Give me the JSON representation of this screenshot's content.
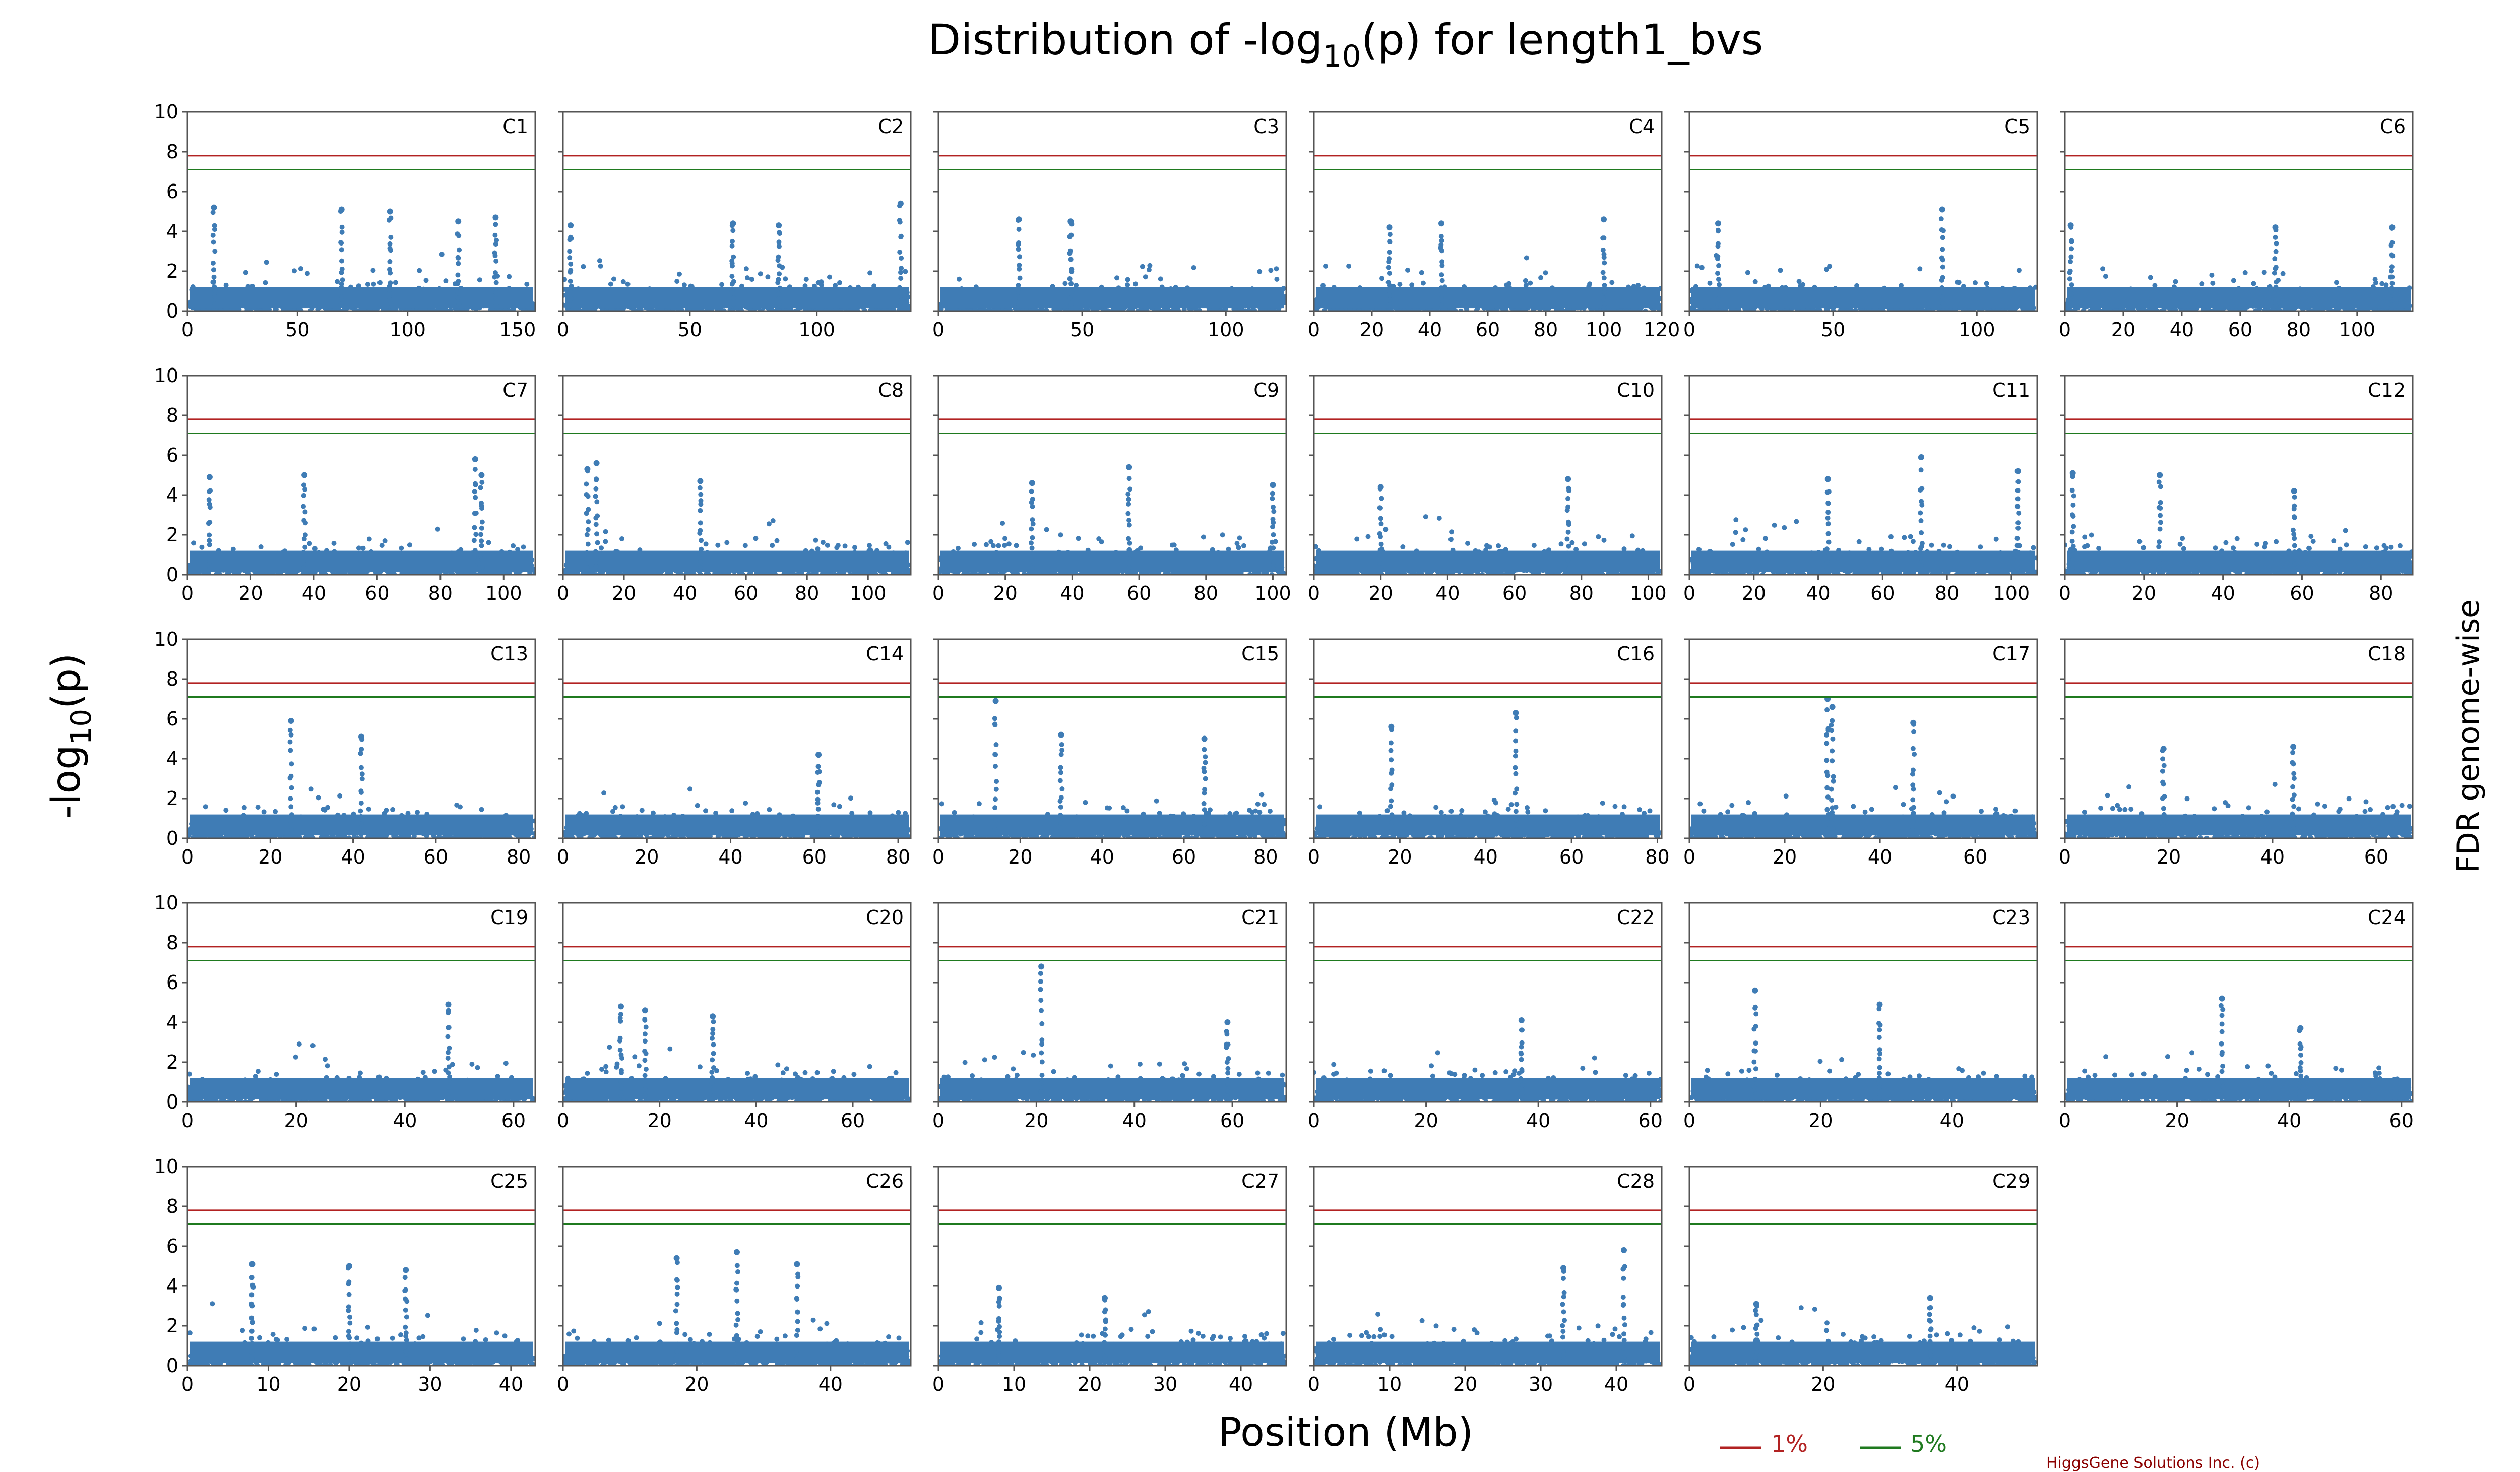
{
  "title": {
    "main": "Distribution of -log",
    "sub": "10",
    "rest": "(p) for length1_bvs"
  },
  "xlabel": "Position (Mb)",
  "ylabel": {
    "main": "-log",
    "sub": "10",
    "rest": "(p)"
  },
  "right_label": "FDR genome-wise",
  "legend": [
    {
      "label": "1%",
      "color": "#b22222"
    },
    {
      "label": "5%",
      "color": "#1f7a1f"
    }
  ],
  "credit": "HiggsGene Solutions Inc. (c)",
  "chart_data": {
    "type": "scatter",
    "point_color": "#3f7cb5",
    "ylim": [
      0,
      10
    ],
    "yticks": [
      0,
      2,
      4,
      6,
      8,
      10
    ],
    "thresholds": [
      {
        "name": "1%",
        "y": 7.8,
        "color": "#b22222"
      },
      {
        "name": "5%",
        "y": 7.1,
        "color": "#1f7a1f"
      }
    ],
    "panels": [
      {
        "name": "C1",
        "xmax": 158,
        "xticks": [
          0,
          50,
          100,
          150
        ],
        "peaks": [
          [
            12,
            5.2
          ],
          [
            70,
            5.1
          ],
          [
            92,
            5.0
          ],
          [
            123,
            4.5
          ],
          [
            140,
            4.7
          ]
        ]
      },
      {
        "name": "C2",
        "xmax": 137,
        "xticks": [
          0,
          50,
          100
        ],
        "peaks": [
          [
            3,
            4.3
          ],
          [
            67,
            4.4
          ],
          [
            85,
            4.3
          ],
          [
            133,
            5.4
          ]
        ]
      },
      {
        "name": "C3",
        "xmax": 121,
        "xticks": [
          0,
          50,
          100
        ],
        "peaks": [
          [
            28,
            4.6
          ],
          [
            46,
            4.5
          ]
        ]
      },
      {
        "name": "C4",
        "xmax": 120,
        "xticks": [
          0,
          20,
          40,
          60,
          80,
          100,
          120
        ],
        "peaks": [
          [
            26,
            4.2
          ],
          [
            44,
            4.4
          ],
          [
            100,
            4.6
          ]
        ]
      },
      {
        "name": "C5",
        "xmax": 121,
        "xticks": [
          0,
          50,
          100
        ],
        "peaks": [
          [
            10,
            4.4
          ],
          [
            88,
            5.1
          ]
        ]
      },
      {
        "name": "C6",
        "xmax": 119,
        "xticks": [
          0,
          20,
          40,
          60,
          80,
          100
        ],
        "peaks": [
          [
            2,
            4.3
          ],
          [
            72,
            4.2
          ],
          [
            112,
            4.2
          ]
        ]
      },
      {
        "name": "C7",
        "xmax": 110,
        "xticks": [
          0,
          20,
          40,
          60,
          80,
          100
        ],
        "peaks": [
          [
            7,
            4.9
          ],
          [
            37,
            5.0
          ],
          [
            91,
            5.8
          ],
          [
            93,
            5.0
          ]
        ]
      },
      {
        "name": "C8",
        "xmax": 114,
        "xticks": [
          0,
          20,
          40,
          60,
          80,
          100
        ],
        "peaks": [
          [
            8,
            5.3
          ],
          [
            11,
            5.6
          ],
          [
            45,
            4.7
          ]
        ]
      },
      {
        "name": "C9",
        "xmax": 104,
        "xticks": [
          0,
          20,
          40,
          60,
          80,
          100
        ],
        "peaks": [
          [
            28,
            4.6
          ],
          [
            57,
            5.4
          ],
          [
            100,
            4.5
          ]
        ]
      },
      {
        "name": "C10",
        "xmax": 104,
        "xticks": [
          0,
          20,
          40,
          60,
          80,
          100
        ],
        "peaks": [
          [
            20,
            4.4
          ],
          [
            76,
            4.8
          ]
        ]
      },
      {
        "name": "C11",
        "xmax": 108,
        "xticks": [
          0,
          20,
          40,
          60,
          80,
          100
        ],
        "peaks": [
          [
            43,
            4.8
          ],
          [
            72,
            5.9
          ],
          [
            102,
            5.2
          ]
        ]
      },
      {
        "name": "C12",
        "xmax": 88,
        "xticks": [
          0,
          20,
          40,
          60,
          80
        ],
        "peaks": [
          [
            2,
            5.1
          ],
          [
            24,
            5.0
          ],
          [
            58,
            4.2
          ]
        ]
      },
      {
        "name": "C13",
        "xmax": 84,
        "xticks": [
          0,
          20,
          40,
          60,
          80
        ],
        "peaks": [
          [
            25,
            5.9
          ],
          [
            42,
            5.1
          ]
        ]
      },
      {
        "name": "C14",
        "xmax": 83,
        "xticks": [
          0,
          20,
          40,
          60,
          80
        ],
        "peaks": [
          [
            61,
            4.2
          ]
        ]
      },
      {
        "name": "C15",
        "xmax": 85,
        "xticks": [
          0,
          20,
          40,
          60,
          80
        ],
        "peaks": [
          [
            14,
            6.9
          ],
          [
            30,
            5.2
          ],
          [
            65,
            5.0
          ]
        ]
      },
      {
        "name": "C16",
        "xmax": 81,
        "xticks": [
          0,
          20,
          40,
          60,
          80
        ],
        "peaks": [
          [
            18,
            5.6
          ],
          [
            47,
            6.3
          ]
        ]
      },
      {
        "name": "C17",
        "xmax": 73,
        "xticks": [
          0,
          20,
          40,
          60
        ],
        "peaks": [
          [
            29,
            7.0
          ],
          [
            30,
            6.6
          ],
          [
            47,
            5.8
          ]
        ]
      },
      {
        "name": "C18",
        "xmax": 67,
        "xticks": [
          0,
          20,
          40,
          60
        ],
        "peaks": [
          [
            19,
            4.5
          ],
          [
            44,
            4.6
          ]
        ]
      },
      {
        "name": "C19",
        "xmax": 64,
        "xticks": [
          0,
          20,
          40,
          60
        ],
        "peaks": [
          [
            48,
            4.9
          ]
        ]
      },
      {
        "name": "C20",
        "xmax": 72,
        "xticks": [
          0,
          20,
          40,
          60
        ],
        "peaks": [
          [
            12,
            4.8
          ],
          [
            17,
            4.6
          ],
          [
            31,
            4.3
          ]
        ]
      },
      {
        "name": "C21",
        "xmax": 71,
        "xticks": [
          0,
          20,
          40,
          60
        ],
        "peaks": [
          [
            21,
            6.8
          ],
          [
            59,
            4.0
          ]
        ]
      },
      {
        "name": "C22",
        "xmax": 62,
        "xticks": [
          0,
          20,
          40,
          60
        ],
        "peaks": [
          [
            37,
            4.1
          ]
        ]
      },
      {
        "name": "C23",
        "xmax": 53,
        "xticks": [
          0,
          20,
          40
        ],
        "peaks": [
          [
            10,
            5.6
          ],
          [
            29,
            4.9
          ]
        ]
      },
      {
        "name": "C24",
        "xmax": 62,
        "xticks": [
          0,
          20,
          40,
          60
        ],
        "peaks": [
          [
            28,
            5.2
          ],
          [
            42,
            3.7
          ]
        ]
      },
      {
        "name": "C25",
        "xmax": 43,
        "xticks": [
          0,
          10,
          20,
          30,
          40
        ],
        "peaks": [
          [
            8,
            5.1
          ],
          [
            20,
            5.0
          ],
          [
            27,
            4.8
          ]
        ]
      },
      {
        "name": "C26",
        "xmax": 52,
        "xticks": [
          0,
          20,
          40
        ],
        "peaks": [
          [
            17,
            5.4
          ],
          [
            26,
            5.7
          ],
          [
            35,
            5.1
          ]
        ]
      },
      {
        "name": "C27",
        "xmax": 46,
        "xticks": [
          0,
          10,
          20,
          30,
          40
        ],
        "peaks": [
          [
            8,
            3.9
          ],
          [
            22,
            3.4
          ]
        ]
      },
      {
        "name": "C28",
        "xmax": 46,
        "xticks": [
          0,
          10,
          20,
          30,
          40
        ],
        "peaks": [
          [
            33,
            4.9
          ],
          [
            41,
            5.8
          ]
        ]
      },
      {
        "name": "C29",
        "xmax": 52,
        "xticks": [
          0,
          20,
          40
        ],
        "peaks": [
          [
            10,
            3.1
          ],
          [
            36,
            3.4
          ]
        ]
      }
    ]
  }
}
